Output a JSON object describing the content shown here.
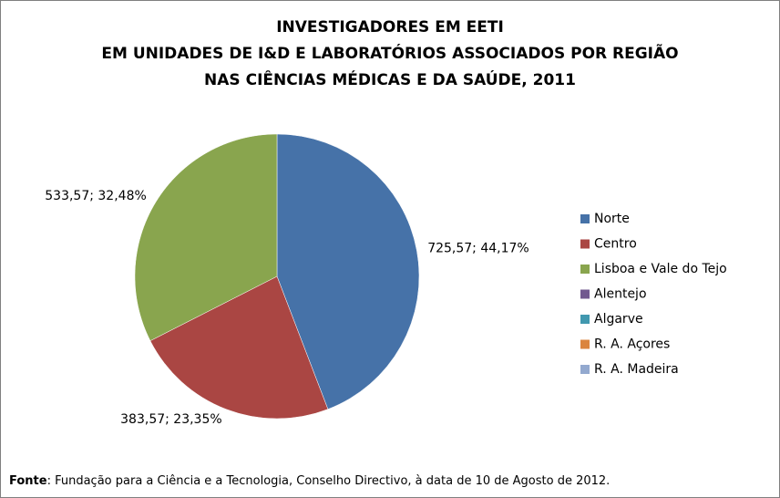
{
  "chart_data": {
    "type": "pie",
    "title": [
      "INVESTIGADORES EM EETI",
      "EM UNIDADES DE I&D E LABORATÓRIOS ASSOCIADOS POR REGIÃO",
      "NAS CIÊNCIAS MÉDICAS E DA SAÚDE, 2011"
    ],
    "categories": [
      "Norte",
      "Centro",
      "Lisboa e Vale do Tejo",
      "Alentejo",
      "Algarve",
      "R. A. Açores",
      "R. A. Madeira"
    ],
    "values": [
      725.57,
      383.57,
      533.57,
      0,
      0,
      0,
      0
    ],
    "value_labels": [
      "725,57; 44,17%",
      "383,57; 23,35%",
      "533,57; 32,48%",
      null,
      null,
      null,
      null
    ],
    "colors": [
      "#4672a8",
      "#aa4643",
      "#89a54e",
      "#71588f",
      "#4198af",
      "#db843d",
      "#93a9cf"
    ],
    "legend": "right",
    "source_label": "Fonte",
    "source_text": ": Fundação para a Ciência e a Tecnologia, Conselho Directivo, à data de 10 de Agosto de 2012."
  }
}
